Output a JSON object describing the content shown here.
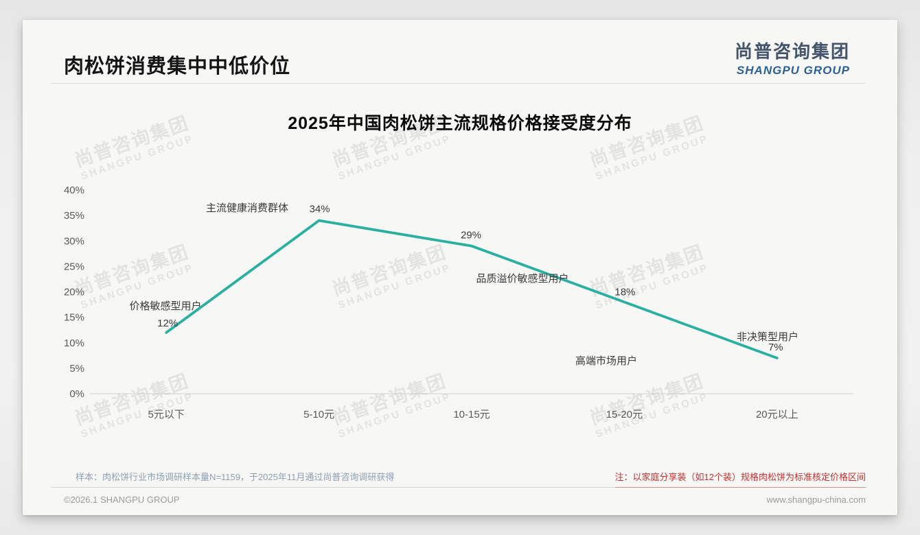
{
  "page": {
    "title": "肉松饼消费集中中低价位",
    "logo": {
      "cn": "尚普咨询集团",
      "en": "SHANGPU GROUP"
    },
    "watermark": {
      "cn": "尚普咨询集团",
      "en": "SHANGPU GROUP"
    },
    "footer": {
      "sample_note": "样本：肉松饼行业市场调研样本量N=1159，于2025年11月通过尚普咨询调研获得",
      "price_note": "注：以家庭分享装（如12个装）规格肉松饼为标准核定价格区间",
      "copyright": "©2026.1 SHANGPU GROUP",
      "website": "www.shangpu-china.com"
    }
  },
  "chart_data": {
    "type": "line",
    "title": "2025年中国肉松饼主流规格价格接受度分布",
    "categories": [
      "5元以下",
      "5-10元",
      "10-15元",
      "15-20元",
      "20元以上"
    ],
    "values": [
      12,
      34,
      29,
      18,
      7
    ],
    "value_labels": [
      "12%",
      "34%",
      "29%",
      "18%",
      "7%"
    ],
    "annotations": [
      "价格敏感型用户",
      "主流健康消费群体",
      "品质溢价敏感型用户",
      "高端市场用户",
      "非决策型用户"
    ],
    "xlabel": "",
    "ylabel": "",
    "ylim": [
      0,
      40
    ],
    "ytick_step": 5,
    "ytick_suffix": "%",
    "grid": false,
    "legend": false,
    "line_color": "#2ab0a0",
    "axis_color": "#cfcfcf",
    "tick_text_color": "#595959",
    "label_text_color": "#3a3a3a"
  }
}
